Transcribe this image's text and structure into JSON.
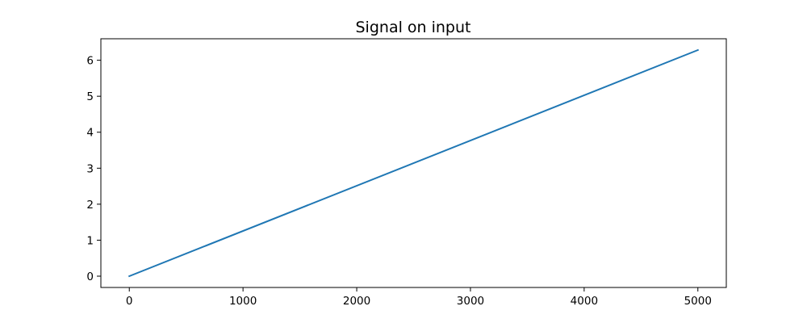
{
  "chart_data": {
    "type": "line",
    "title": "Signal on input",
    "xlabel": "",
    "ylabel": "",
    "xlim": [
      -250,
      5250
    ],
    "ylim": [
      -0.314,
      6.597
    ],
    "x_ticks": [
      0,
      1000,
      2000,
      3000,
      4000,
      5000
    ],
    "x_tick_labels": [
      "0",
      "1000",
      "2000",
      "3000",
      "4000",
      "5000"
    ],
    "y_ticks": [
      0,
      1,
      2,
      3,
      4,
      5,
      6
    ],
    "y_tick_labels": [
      "0",
      "1",
      "2",
      "3",
      "4",
      "5",
      "6"
    ],
    "grid": false,
    "legend": "none",
    "series": [
      {
        "color": "#1f77b4",
        "x": [
          0,
          5000
        ],
        "y": [
          0,
          6.283
        ]
      }
    ]
  }
}
